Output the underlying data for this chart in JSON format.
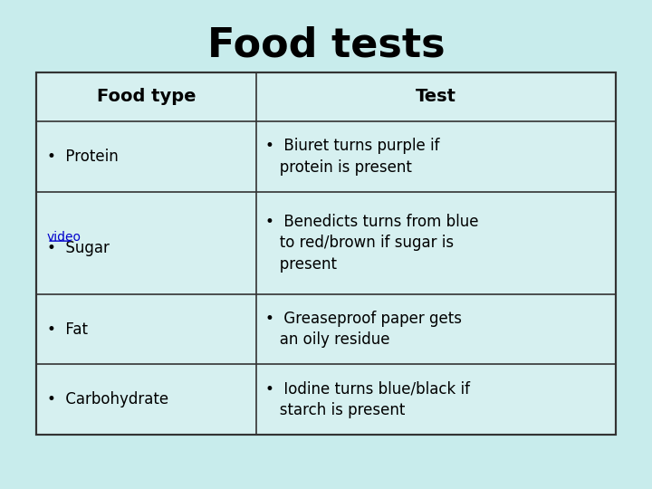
{
  "title": "Food tests",
  "title_fontsize": 32,
  "title_fontweight": "bold",
  "background_color": "#c8ecec",
  "table_bg_color": "#d6f0f0",
  "table_border_color": "#333333",
  "header_left": "Food type",
  "header_right": "Test",
  "header_fontsize": 14,
  "header_fontweight": "bold",
  "cell_fontsize": 12,
  "rows": [
    {
      "left": "•  Protein",
      "right": "•  Biuret turns purple if\n   protein is present"
    },
    {
      "left": "video•  Sugar",
      "right": "•  Benedicts turns from blue\n   to red/brown if sugar is\n   present"
    },
    {
      "left": "•  Fat",
      "right": "•  Greaseproof paper gets\n   an oily residue"
    },
    {
      "left": "•  Carbohydrate",
      "right": "•  Iodine turns blue/black if\n   starch is present"
    }
  ],
  "video_text": "video",
  "video_color": "#0000cc",
  "video_underline": true
}
